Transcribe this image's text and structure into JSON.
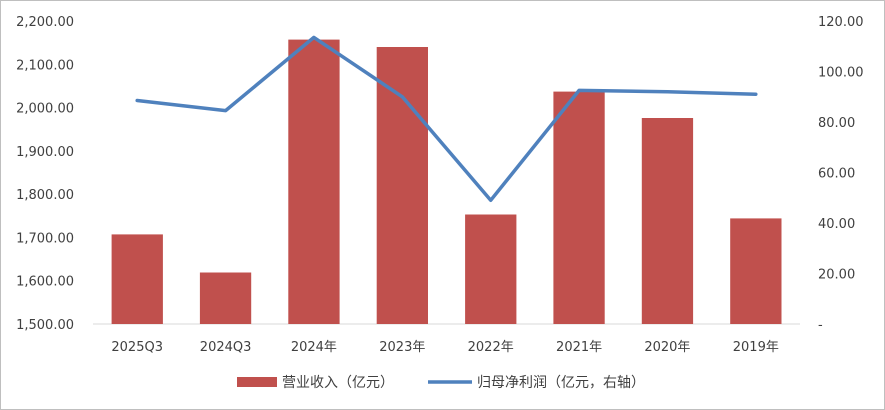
{
  "chart_data": {
    "type": "bar",
    "categories": [
      "2025Q3",
      "2024Q3",
      "2024年",
      "2023年",
      "2022年",
      "2021年",
      "2020年",
      "2019年"
    ],
    "series": [
      {
        "name": "营业收入（亿元）",
        "type": "bar",
        "axis": "left",
        "color": "#c0504d",
        "values": [
          1707,
          1619,
          2157,
          2140,
          1753,
          2037,
          1976,
          1744
        ]
      },
      {
        "name": "归母净利润（亿元，右轴）",
        "type": "line",
        "axis": "right",
        "color": "#4f81bd",
        "values": [
          88.5,
          84.5,
          113.5,
          90.0,
          49.0,
          92.5,
          92.0,
          91.0
        ]
      }
    ],
    "y_left": {
      "min": 1500,
      "max": 2200,
      "step": 100,
      "tick_labels": [
        "1,500.00",
        "1,600.00",
        "1,700.00",
        "1,800.00",
        "1,900.00",
        "2,000.00",
        "2,100.00",
        "2,200.00"
      ]
    },
    "y_right": {
      "min": 0,
      "max": 120,
      "step": 20,
      "tick_labels": [
        "-",
        "20.00",
        "40.00",
        "60.00",
        "80.00",
        "100.00",
        "120.00"
      ]
    },
    "grid": false,
    "legend_position": "bottom"
  }
}
